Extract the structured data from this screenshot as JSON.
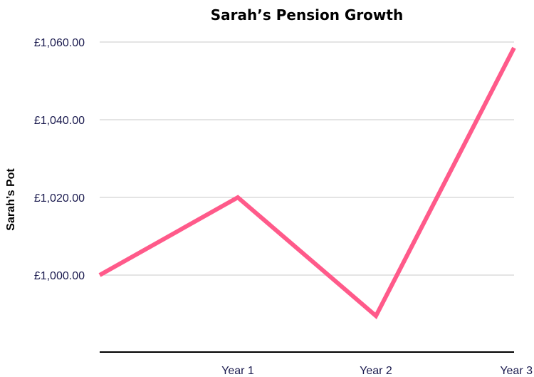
{
  "chart_data": {
    "type": "line",
    "title": "Sarah’s Pension Growth",
    "ylabel": "Sarah’s Pot",
    "xlabel": "",
    "x": [
      0,
      1,
      2,
      3
    ],
    "x_tick_labels": [
      {
        "x": 1,
        "label": "Year 1"
      },
      {
        "x": 2,
        "label": "Year 2"
      },
      {
        "x": 3,
        "label": "Year 3"
      }
    ],
    "series": [
      {
        "values": [
          1000.0,
          1020.0,
          989.5,
          1058.5
        ],
        "color": "#ff5a8a"
      }
    ],
    "y_ticks": [
      {
        "value": 1000,
        "label": "£1,000.00"
      },
      {
        "value": 1020,
        "label": "£1,020.00"
      },
      {
        "value": 1040,
        "label": "£1,040.00"
      },
      {
        "value": 1060,
        "label": "£1,060.00"
      }
    ],
    "ylim": [
      980,
      1060
    ],
    "xlim": [
      0,
      3
    ],
    "grid": true,
    "legend": "none"
  }
}
